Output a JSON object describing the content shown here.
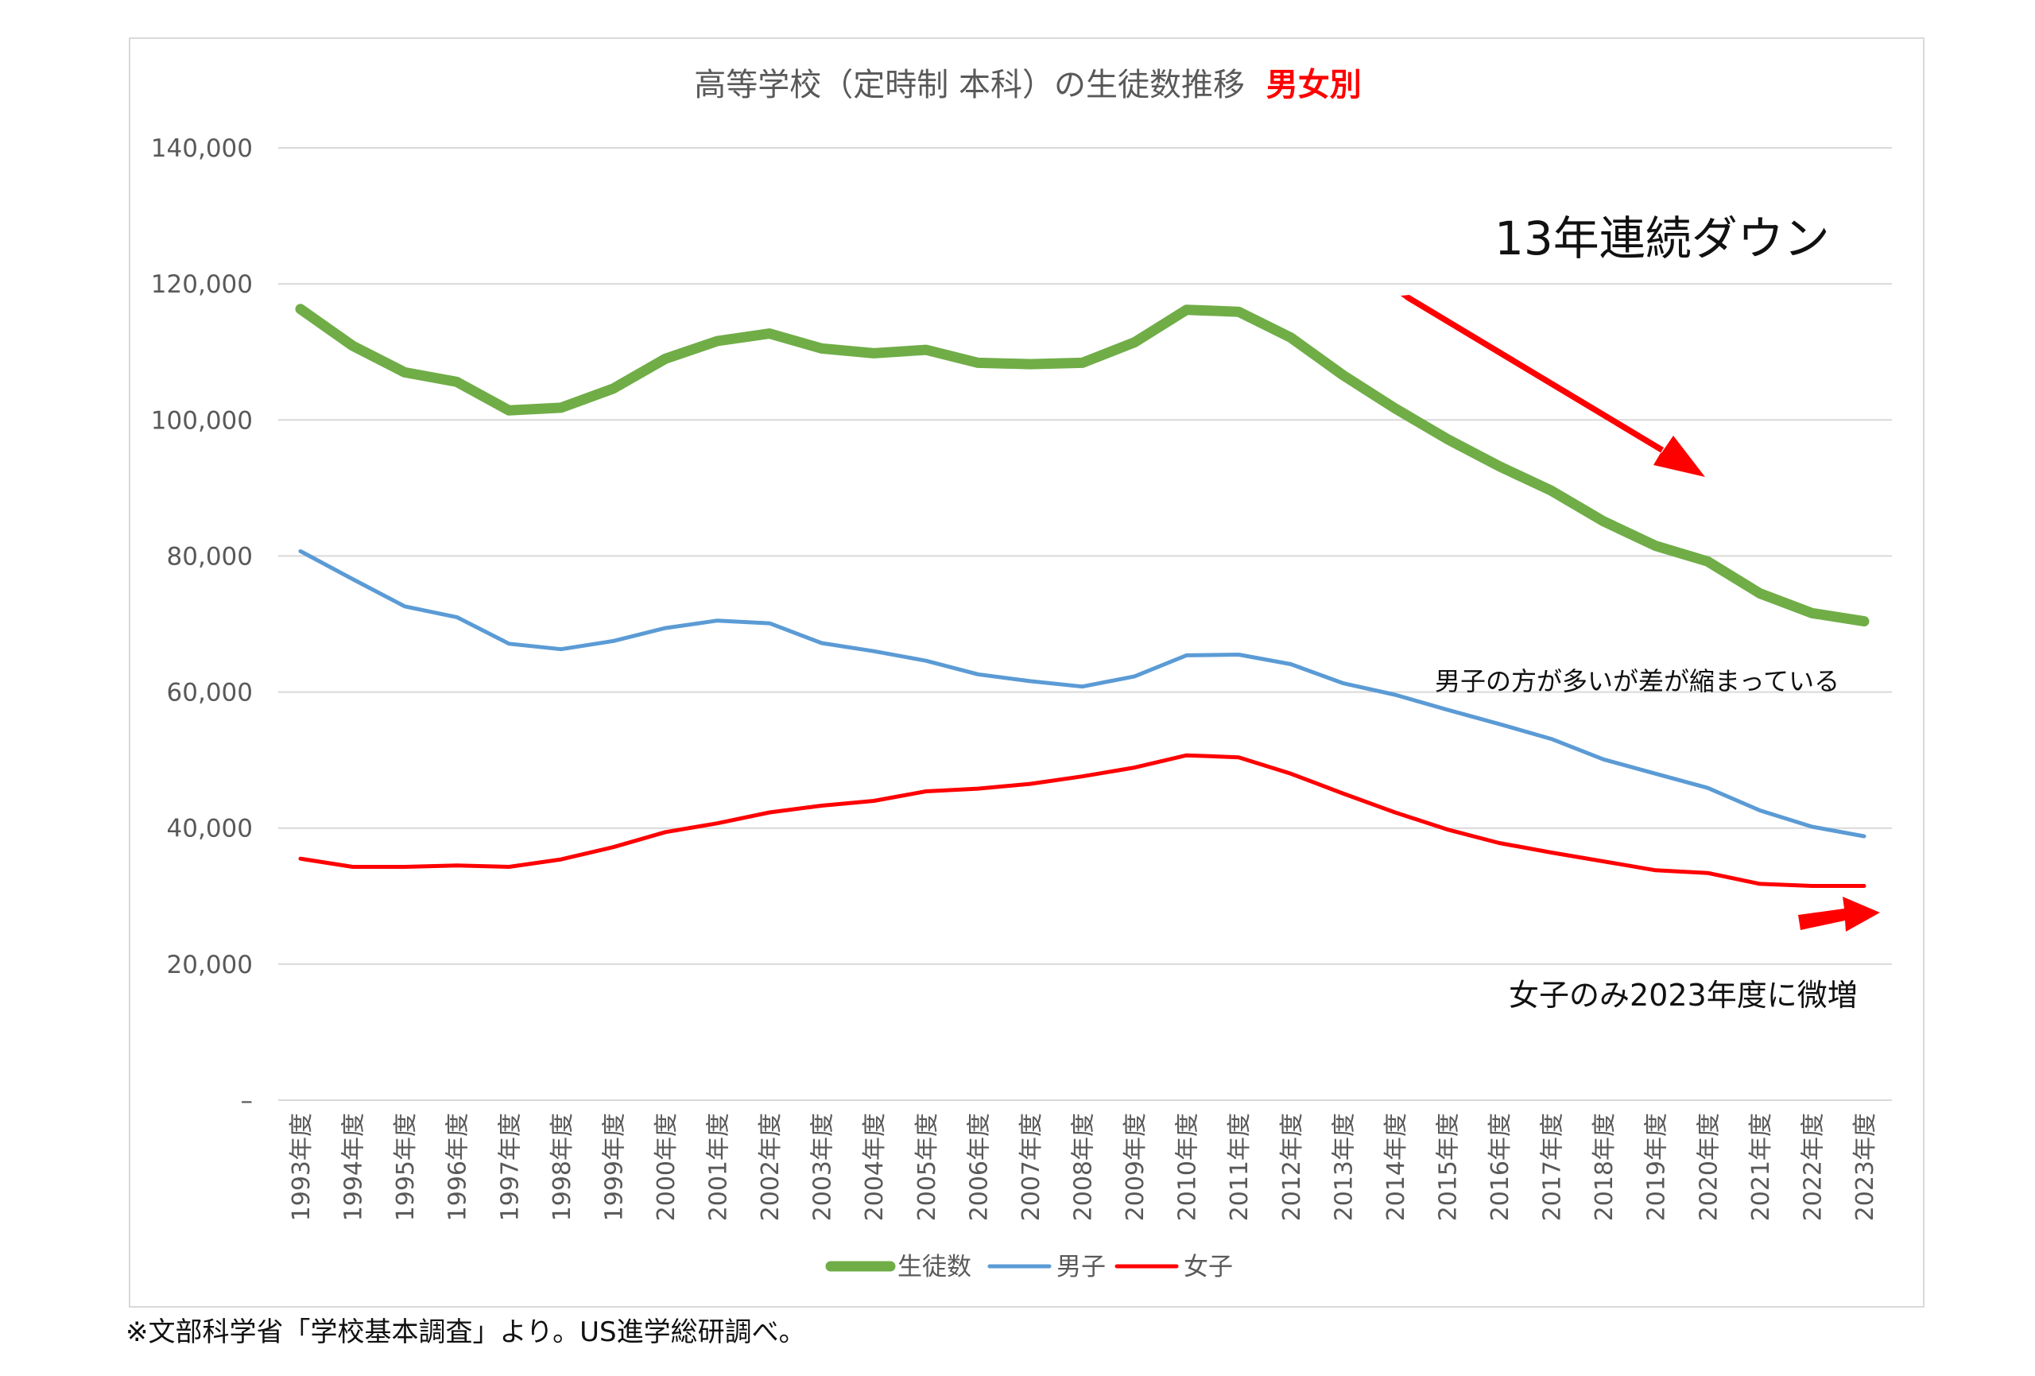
{
  "chart_data": {
    "type": "line",
    "title_main": "高等学校（定時制 本科）の生徒数推移",
    "title_highlight": "男女別",
    "categories": [
      "1993年度",
      "1994年度",
      "1995年度",
      "1996年度",
      "1997年度",
      "1998年度",
      "1999年度",
      "2000年度",
      "2001年度",
      "2002年度",
      "2003年度",
      "2004年度",
      "2005年度",
      "2006年度",
      "2007年度",
      "2008年度",
      "2009年度",
      "2010年度",
      "2011年度",
      "2012年度",
      "2013年度",
      "2014年度",
      "2015年度",
      "2016年度",
      "2017年度",
      "2018年度",
      "2019年度",
      "2020年度",
      "2021年度",
      "2022年度",
      "2023年度"
    ],
    "y_ticks": [
      0,
      20000,
      40000,
      60000,
      80000,
      100000,
      120000,
      140000
    ],
    "y_tick_labels": [
      "–",
      "20,000",
      "40,000",
      "60,000",
      "80,000",
      "100,000",
      "120,000",
      "140,000"
    ],
    "ylim": [
      0,
      140000
    ],
    "grid": true,
    "legend_position": "bottom",
    "series": [
      {
        "name": "生徒数",
        "color": "#70AD47",
        "values": [
          116300,
          110900,
          107000,
          105600,
          101400,
          101800,
          104600,
          109000,
          111600,
          112700,
          110500,
          109800,
          110300,
          108400,
          108200,
          108400,
          111400,
          116200,
          115900,
          112100,
          106600,
          101700,
          97200,
          93200,
          89600,
          85100,
          81500,
          79200,
          74500,
          71600,
          70400
        ]
      },
      {
        "name": "男子",
        "color": "#5B9BD5",
        "values": [
          80700,
          76600,
          72600,
          71000,
          67100,
          66300,
          67500,
          69400,
          70500,
          70100,
          67200,
          66000,
          64600,
          62600,
          61600,
          60800,
          62300,
          65400,
          65500,
          64100,
          61300,
          59600,
          57400,
          55300,
          53100,
          50100,
          48000,
          45900,
          42600,
          40200,
          38800
        ]
      },
      {
        "name": "女子",
        "color": "#FF0000",
        "values": [
          35500,
          34300,
          34300,
          34500,
          34300,
          35400,
          37200,
          39400,
          40700,
          42300,
          43300,
          44000,
          45400,
          45800,
          46500,
          47600,
          48900,
          50700,
          50400,
          48000,
          45100,
          42300,
          39800,
          37800,
          36400,
          35100,
          33800,
          33400,
          31800,
          31500,
          31500
        ]
      }
    ],
    "annotations": [
      {
        "text": "13年連続ダウン"
      },
      {
        "text": "男子の方が多いが差が縮まっている"
      },
      {
        "text": "女子のみ2023年度に微増"
      }
    ],
    "source_note": "※文部科学省「学校基本調査」より。US進学総研調べ。"
  },
  "colors": {
    "grid": "#D9D9D9",
    "axis_text": "#595959",
    "title": "#595959",
    "highlight": "#FF0000",
    "arrow": "#FF0000",
    "frame": "#D9D9D9"
  }
}
